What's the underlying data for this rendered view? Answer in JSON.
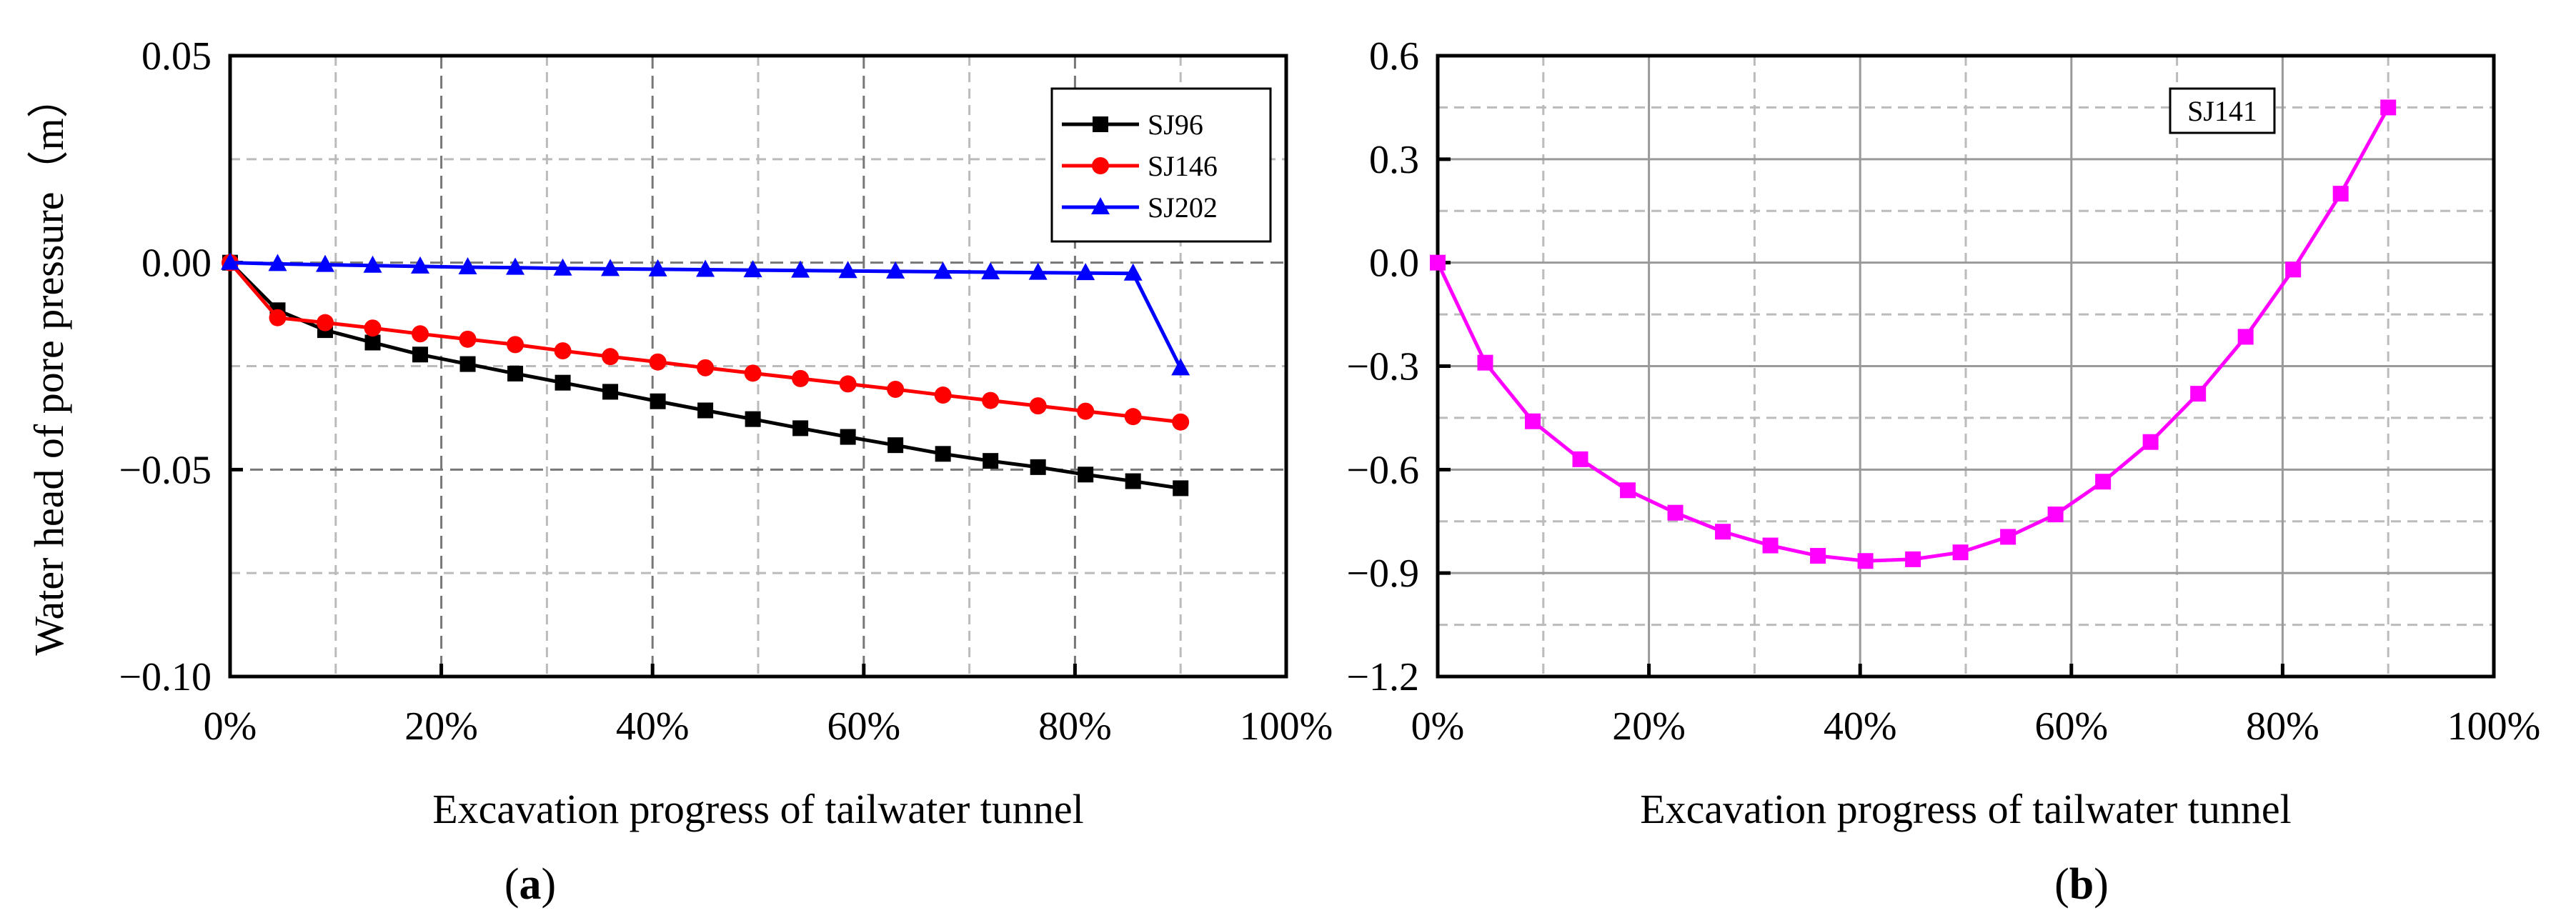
{
  "chart_data": [
    {
      "type": "line",
      "panel_label": "a",
      "xlabel": "Excavation progress of tailwater tunnel",
      "ylabel": "Water head of pore pressure（m）",
      "xlim": [
        0,
        100
      ],
      "ylim": [
        -0.1,
        0.05
      ],
      "xticks": [
        0,
        20,
        40,
        60,
        80,
        100
      ],
      "xtick_labels": [
        "0%",
        "20%",
        "40%",
        "60%",
        "80%",
        "100%"
      ],
      "yticks": [
        -0.1,
        -0.05,
        0.0,
        0.05
      ],
      "ytick_labels": [
        "−0.10",
        "−0.05",
        "0.00",
        "0.05"
      ],
      "grid": true,
      "legend": "top-right",
      "x": [
        0,
        4.5,
        9,
        13.5,
        18,
        22.5,
        27,
        31.5,
        36,
        40.5,
        45,
        49.5,
        54,
        58.5,
        63,
        67.5,
        72,
        76.5,
        81,
        85.5,
        90
      ],
      "series": [
        {
          "name": "SJ96",
          "color": "#000000",
          "marker": "square",
          "values": [
            0,
            -0.0115,
            -0.0163,
            -0.0193,
            -0.0222,
            -0.0245,
            -0.0268,
            -0.029,
            -0.0312,
            -0.0335,
            -0.0357,
            -0.0378,
            -0.04,
            -0.0421,
            -0.0441,
            -0.0462,
            -0.0479,
            -0.0494,
            -0.0512,
            -0.0528,
            -0.0545
          ]
        },
        {
          "name": "SJ146",
          "color": "#ff0000",
          "marker": "circle",
          "values": [
            0,
            -0.0133,
            -0.0145,
            -0.0158,
            -0.0172,
            -0.0185,
            -0.0198,
            -0.0213,
            -0.0227,
            -0.024,
            -0.0254,
            -0.0267,
            -0.028,
            -0.0293,
            -0.0306,
            -0.032,
            -0.0333,
            -0.0346,
            -0.0359,
            -0.0372,
            -0.0385
          ]
        },
        {
          "name": "SJ202",
          "color": "#0000ff",
          "marker": "triangle",
          "values": [
            0,
            -0.0003,
            -0.0005,
            -0.0007,
            -0.0009,
            -0.0011,
            -0.0012,
            -0.0014,
            -0.0015,
            -0.0016,
            -0.0017,
            -0.0018,
            -0.0019,
            -0.002,
            -0.0021,
            -0.0022,
            -0.0023,
            -0.0024,
            -0.0025,
            -0.0026,
            -0.0255
          ]
        }
      ]
    },
    {
      "type": "line",
      "panel_label": "b",
      "xlabel": "Excavation progress of tailwater tunnel",
      "ylabel": "",
      "xlim": [
        0,
        100
      ],
      "ylim": [
        -1.2,
        0.6
      ],
      "xticks": [
        0,
        20,
        40,
        60,
        80,
        100
      ],
      "xtick_labels": [
        "0%",
        "20%",
        "40%",
        "60%",
        "80%",
        "100%"
      ],
      "yticks": [
        -1.2,
        -0.9,
        -0.6,
        -0.3,
        0.0,
        0.3,
        0.6
      ],
      "ytick_labels": [
        "−1.2",
        "−0.9",
        "−0.6",
        "−0.3",
        "0.0",
        "0.3",
        "0.6"
      ],
      "grid": true,
      "legend": "top-right",
      "x": [
        0,
        4.5,
        9,
        13.5,
        18,
        22.5,
        27,
        31.5,
        36,
        40.5,
        45,
        49.5,
        54,
        58.5,
        63,
        67.5,
        72,
        76.5,
        81,
        85.5,
        90
      ],
      "series": [
        {
          "name": "SJ141",
          "color": "#ff00ff",
          "marker": "square",
          "values": [
            0,
            -0.29,
            -0.46,
            -0.57,
            -0.66,
            -0.725,
            -0.78,
            -0.82,
            -0.85,
            -0.865,
            -0.86,
            -0.84,
            -0.795,
            -0.73,
            -0.635,
            -0.52,
            -0.38,
            -0.215,
            -0.02,
            0.2,
            0.45
          ]
        }
      ]
    }
  ]
}
